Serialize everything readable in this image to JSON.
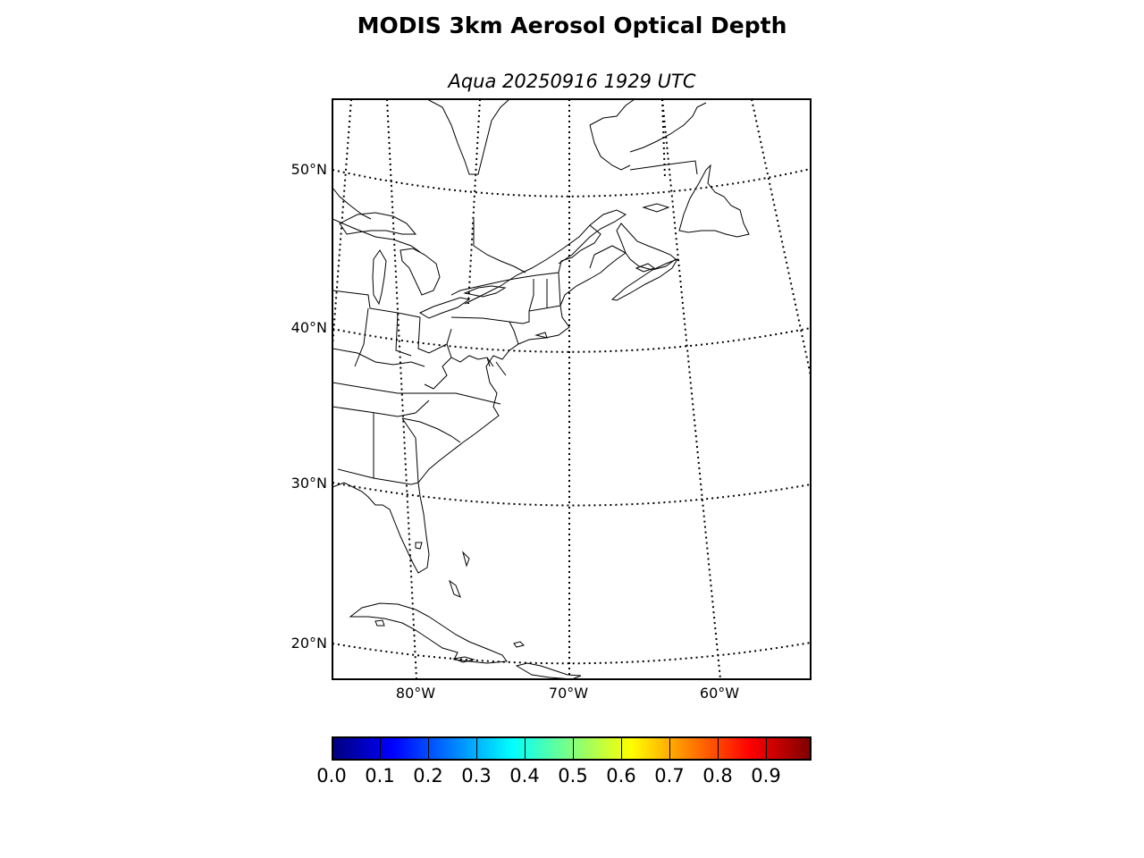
{
  "title": "MODIS 3km Aerosol Optical Depth",
  "subtitle": "Aqua 20250916 1929 UTC",
  "map": {
    "projection": "conic",
    "extent": {
      "lon": [
        -85,
        -54
      ],
      "lat": [
        18,
        55
      ]
    },
    "parallel_labels": [
      "50°N",
      "40°N",
      "30°N",
      "20°N"
    ],
    "meridian_labels": [
      "80°W",
      "70°W",
      "60°W"
    ],
    "graticule_style": "dotted",
    "features": [
      "coastlines",
      "country borders",
      "US state borders",
      "Great Lakes"
    ]
  },
  "colorbar": {
    "colormap": "jet",
    "range": [
      0.0,
      1.0
    ],
    "tick_labels": [
      "0.0",
      "0.1",
      "0.2",
      "0.3",
      "0.4",
      "0.5",
      "0.6",
      "0.7",
      "0.8",
      "0.9"
    ],
    "colors": [
      "#00007f",
      "#0000ff",
      "#007fff",
      "#00ffff",
      "#7fff7f",
      "#ffff00",
      "#ff7f00",
      "#ff0000",
      "#7f0000"
    ]
  }
}
